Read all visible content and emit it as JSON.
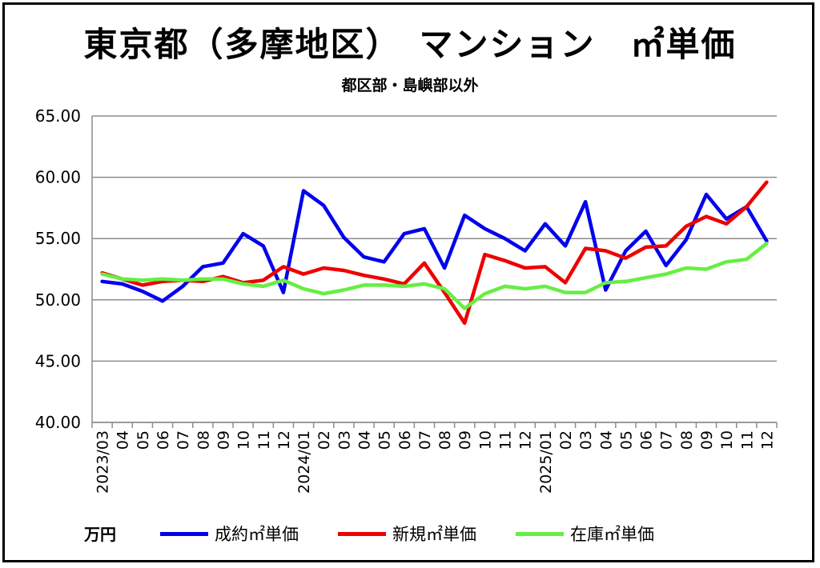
{
  "title": "東京都（多摩地区）　マンション　㎡単価",
  "subtitle": "都区部・島嶼部以外",
  "unit_label": "万円",
  "chart_data": {
    "type": "line",
    "title": "東京都（多摩地区）　マンション　㎡単価",
    "subtitle": "都区部・島嶼部以外",
    "ylabel": "万円",
    "ylim": [
      40,
      65
    ],
    "yticks": [
      "40.00",
      "45.00",
      "50.00",
      "55.00",
      "60.00",
      "65.00"
    ],
    "grid": true,
    "legend_position": "bottom",
    "x": [
      "2023/03",
      "04",
      "05",
      "06",
      "07",
      "08",
      "09",
      "10",
      "11",
      "12",
      "2024/01",
      "02",
      "03",
      "04",
      "05",
      "06",
      "07",
      "08",
      "09",
      "10",
      "11",
      "12",
      "2025/01",
      "02",
      "03",
      "04",
      "05",
      "06",
      "07",
      "08",
      "09",
      "10",
      "11",
      "12"
    ],
    "series": [
      {
        "name": "成約㎡単価",
        "color": "#0000ee",
        "values": [
          51.5,
          51.3,
          50.7,
          49.9,
          51.1,
          52.7,
          53.0,
          55.4,
          54.4,
          50.6,
          58.9,
          57.7,
          55.1,
          53.5,
          53.1,
          55.4,
          55.8,
          52.6,
          56.9,
          55.8,
          55.0,
          54.0,
          56.2,
          54.4,
          58.0,
          50.8,
          54.0,
          55.6,
          52.8,
          54.9,
          58.6,
          56.6,
          57.6,
          54.8
        ]
      },
      {
        "name": "新規㎡単価",
        "color": "#ee0000",
        "values": [
          52.2,
          51.7,
          51.2,
          51.5,
          51.6,
          51.5,
          51.9,
          51.4,
          51.6,
          52.7,
          52.1,
          52.6,
          52.4,
          52.0,
          51.7,
          51.3,
          53.0,
          50.6,
          48.1,
          53.7,
          53.2,
          52.6,
          52.7,
          51.4,
          54.2,
          54.0,
          53.4,
          54.3,
          54.4,
          56.0,
          56.8,
          56.2,
          57.6,
          59.6
        ]
      },
      {
        "name": "在庫㎡単価",
        "color": "#66ee44",
        "values": [
          52.1,
          51.7,
          51.6,
          51.7,
          51.6,
          51.7,
          51.7,
          51.3,
          51.1,
          51.6,
          50.9,
          50.5,
          50.8,
          51.2,
          51.2,
          51.1,
          51.3,
          50.9,
          49.3,
          50.5,
          51.1,
          50.9,
          51.1,
          50.6,
          50.6,
          51.4,
          51.5,
          51.8,
          52.1,
          52.6,
          52.5,
          53.1,
          53.3,
          54.6
        ]
      }
    ]
  }
}
